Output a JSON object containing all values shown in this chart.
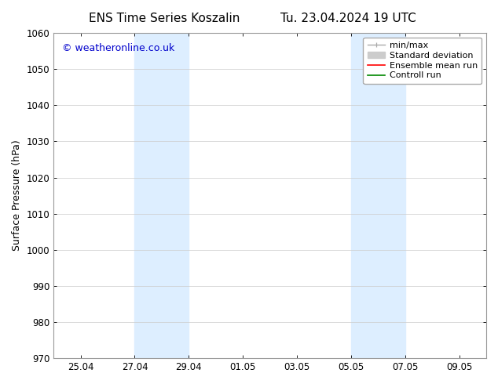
{
  "title_left": "ENS Time Series Koszalin",
  "title_right": "Tu. 23.04.2024 19 UTC",
  "ylabel": "Surface Pressure (hPa)",
  "ylim": [
    970,
    1060
  ],
  "yticks": [
    970,
    980,
    990,
    1000,
    1010,
    1020,
    1030,
    1040,
    1050,
    1060
  ],
  "background_color": "#ffffff",
  "plot_bg_color": "#ffffff",
  "watermark": "© weatheronline.co.uk",
  "watermark_color": "#0000cc",
  "shaded_regions": [
    {
      "start": 3.0,
      "end": 5.0
    },
    {
      "start": 11.0,
      "end": 13.0
    }
  ],
  "shaded_color": "#ddeeff",
  "legend_entries": [
    {
      "label": "min/max",
      "color": "#aaaaaa",
      "linestyle": "-",
      "linewidth": 1.0
    },
    {
      "label": "Standard deviation",
      "color": "#cccccc",
      "linestyle": "-",
      "linewidth": 6
    },
    {
      "label": "Ensemble mean run",
      "color": "#ff0000",
      "linestyle": "-",
      "linewidth": 1.2
    },
    {
      "label": "Controll run",
      "color": "#008800",
      "linestyle": "-",
      "linewidth": 1.2
    }
  ],
  "xlim": [
    0.0,
    16.0
  ],
  "xtick_positions": [
    1.0,
    3.0,
    5.0,
    7.0,
    9.0,
    11.0,
    13.0,
    15.0
  ],
  "xtick_labels": [
    "25.04",
    "27.04",
    "29.04",
    "01.05",
    "03.05",
    "05.05",
    "07.05",
    "09.05"
  ],
  "title_fontsize": 11,
  "label_fontsize": 9,
  "tick_fontsize": 8.5,
  "legend_fontsize": 8,
  "watermark_fontsize": 9,
  "spine_color": "#999999",
  "grid_color": "#cccccc",
  "grid_linewidth": 0.5
}
